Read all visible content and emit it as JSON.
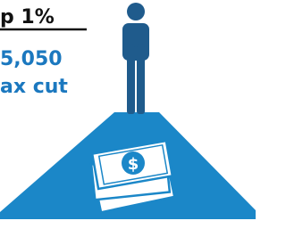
{
  "heading": "p 1%",
  "amount": "5,050",
  "label": "ax cut"
}
